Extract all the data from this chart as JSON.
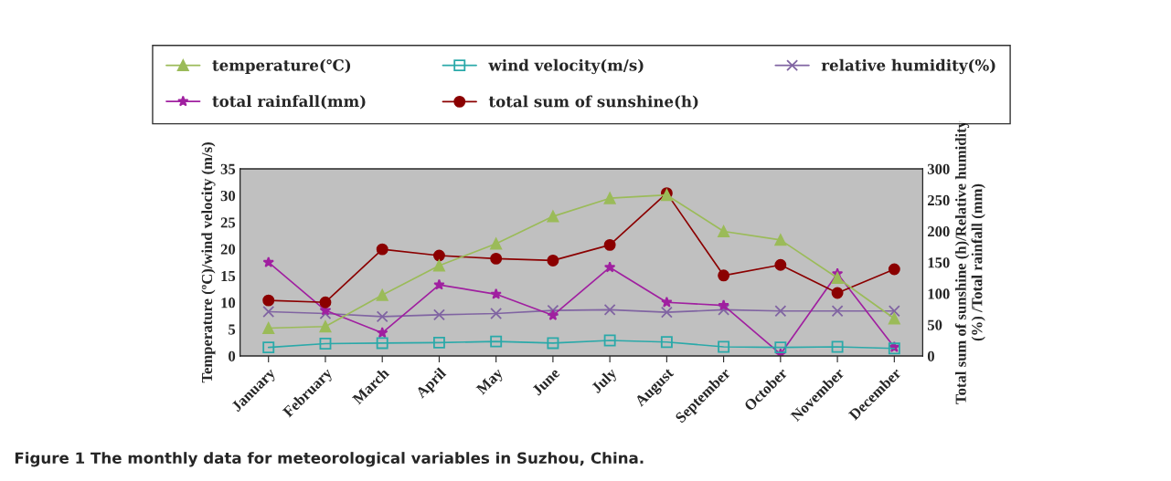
{
  "chart_data": {
    "type": "line",
    "categories": [
      "January",
      "February",
      "March",
      "April",
      "May",
      "June",
      "July",
      "August",
      "September",
      "October",
      "November",
      "December"
    ],
    "ylabel": "Temperature (ºC)/wind velocity (m/s)",
    "y2label": "Total sum of sunshine (h)/Relative humidity\n(%) /Total rainfall (mm)",
    "ylim": [
      0,
      35
    ],
    "yticks": [
      0,
      5,
      10,
      15,
      20,
      25,
      30,
      35
    ],
    "y2lim": [
      0,
      300
    ],
    "y2ticks": [
      0,
      50,
      100,
      150,
      200,
      250,
      300
    ],
    "grid": false,
    "legend": "top",
    "annotations": [
      "Figure 1 The monthly data for meteorological variables in Suzhou, China."
    ],
    "series": [
      {
        "name": "temperature(℃)",
        "color": "#9bbb59",
        "marker": "triangle",
        "values": [
          5.2,
          5.5,
          11.4,
          16.9,
          21,
          26.1,
          29.5,
          30.1,
          23.3,
          21.7,
          14.6,
          7.0
        ]
      },
      {
        "name": "wind velocity(m/s)",
        "color": "#2aa9a9",
        "marker": "square",
        "values": [
          1.6,
          2.3,
          2.4,
          2.5,
          2.7,
          2.4,
          2.9,
          2.6,
          1.7,
          1.6,
          1.7,
          1.4
        ]
      },
      {
        "name": "relative humidity(%)",
        "color": "#8064a2",
        "marker": "cross",
        "axis": "y2",
        "values": [
          71,
          68,
          63,
          66,
          68,
          73,
          74,
          70,
          74,
          72,
          72,
          72
        ]
      },
      {
        "name": "total rainfall(mm)",
        "color": "#a020a0",
        "marker": "star",
        "axis": "y2",
        "values": [
          150,
          73,
          37,
          114,
          99,
          65,
          142,
          86,
          81,
          3,
          132,
          14
        ]
      },
      {
        "name": "total sum of sunshine(h)",
        "color": "#8b0000",
        "marker": "circle",
        "axis": "y2",
        "values": [
          89,
          86,
          171,
          161,
          156,
          153,
          178,
          261,
          129,
          146,
          101,
          139
        ]
      }
    ]
  }
}
